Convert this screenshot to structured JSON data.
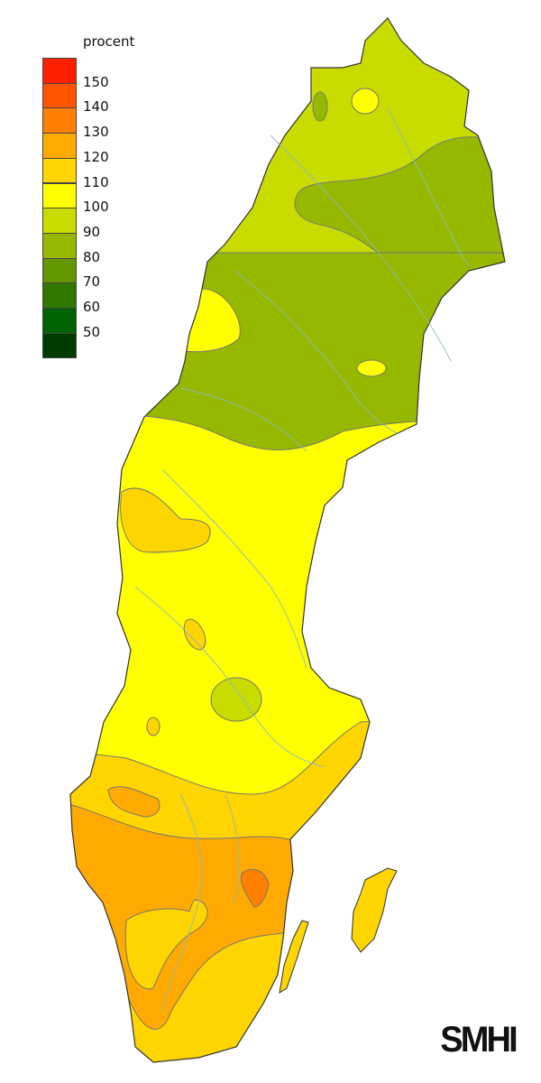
{
  "legend": {
    "title": "procent",
    "colors": [
      "#ff2000",
      "#ff5500",
      "#ff8000",
      "#ffaa00",
      "#ffd500",
      "#ffff00",
      "#c8dc00",
      "#96b900",
      "#649600",
      "#327800",
      "#006400",
      "#003c00"
    ],
    "labels": [
      "150",
      "140",
      "130",
      "120",
      "110",
      "100",
      "90",
      "80",
      "70",
      "60",
      "50"
    ]
  },
  "map": {
    "region": "Sweden",
    "zones": [
      {
        "range": "90-100",
        "color": "#c8dc00"
      },
      {
        "range": "80-90",
        "color": "#96b900"
      },
      {
        "range": "100-110",
        "color": "#ffff00"
      },
      {
        "range": "110-120",
        "color": "#ffd500"
      },
      {
        "range": "120-130",
        "color": "#ffaa00"
      },
      {
        "range": "130-140",
        "color": "#ff8000"
      }
    ],
    "water_color": "#8fb6c8"
  },
  "logo": "SMHI"
}
